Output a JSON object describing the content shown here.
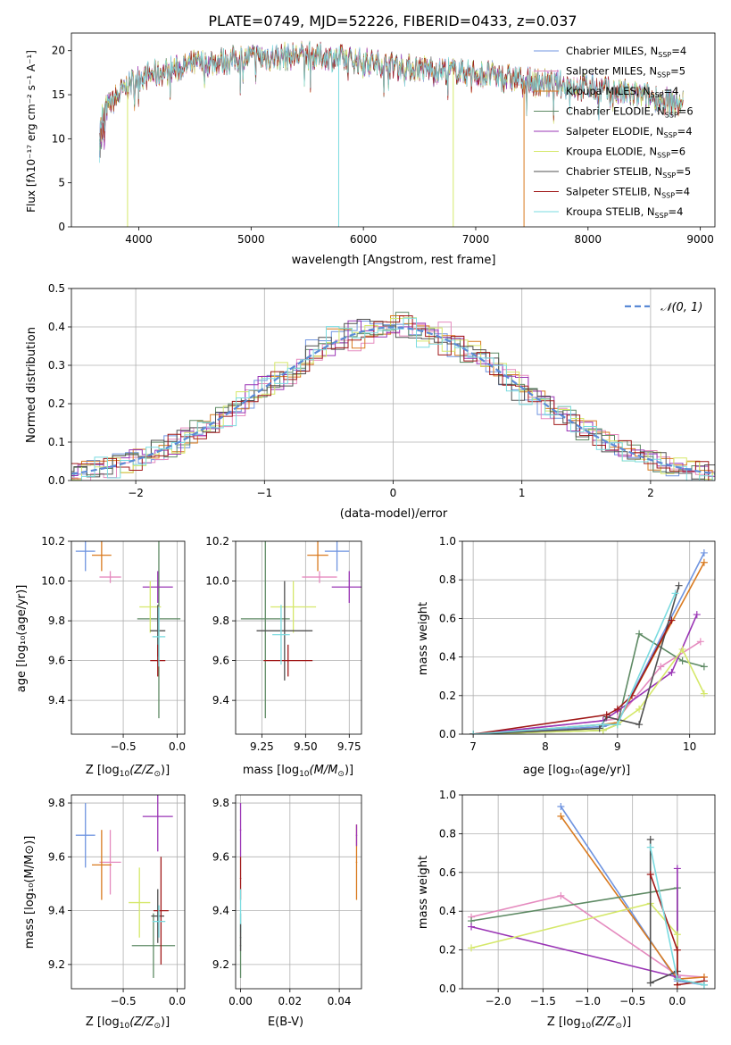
{
  "figure_title": "PLATE=0749, MJD=52226, FIBERID=0433, z=0.037",
  "colors": [
    "#6f94e0",
    "#e58bbf",
    "#d97a1f",
    "#5e8a64",
    "#9a34b5",
    "#d5e86a",
    "#505050",
    "#a01818",
    "#7adbe0"
  ],
  "chart_data": [
    {
      "id": "spectrum",
      "type": "line",
      "xlabel": "wavelength [Angstrom, rest frame]",
      "ylabel": "Flux [fλ10⁻¹⁷ erg cm⁻² s⁻¹ A⁻¹]",
      "xlim": [
        3400,
        9130
      ],
      "ylim": [
        0,
        22
      ],
      "xticks": [
        4000,
        5000,
        6000,
        7000,
        8000,
        9000
      ],
      "yticks": [
        0,
        5,
        10,
        15,
        20
      ],
      "grid": false,
      "legend_position": "top-right",
      "series": [
        {
          "name": "Chabrier MILES, N_SSP=4",
          "label_main": "Chabrier MILES, N",
          "label_sub": "SSP",
          "label_end": "=4"
        },
        {
          "name": "Salpeter MILES, N_SSP=5",
          "label_main": "Salpeter MILES, N",
          "label_sub": "SSP",
          "label_end": "=5"
        },
        {
          "name": "Kroupa MILES, N_SSP=4",
          "label_main": "Kroupa MILES, N",
          "label_sub": "SSP",
          "label_end": "=4"
        },
        {
          "name": "Chabrier ELODIE, N_SSP=6",
          "label_main": "Chabrier ELODIE, N",
          "label_sub": "SSP",
          "label_end": "=6"
        },
        {
          "name": "Salpeter ELODIE, N_SSP=4",
          "label_main": "Salpeter ELODIE, N",
          "label_sub": "SSP",
          "label_end": "=4"
        },
        {
          "name": "Kroupa ELODIE, N_SSP=6",
          "label_main": "Kroupa ELODIE, N",
          "label_sub": "SSP",
          "label_end": "=6"
        },
        {
          "name": "Chabrier STELIB, N_SSP=5",
          "label_main": "Chabrier STELIB, N",
          "label_sub": "SSP",
          "label_end": "=5"
        },
        {
          "name": "Salpeter STELIB, N_SSP=4",
          "label_main": "Salpeter STELIB, N",
          "label_sub": "SSP",
          "label_end": "=4"
        },
        {
          "name": "Kroupa STELIB, N_SSP=4",
          "label_main": "Kroupa STELIB, N",
          "label_sub": "SSP",
          "label_end": "=4"
        }
      ],
      "continuum": [
        [
          3650,
          12.5
        ],
        [
          3750,
          14
        ],
        [
          3900,
          16
        ],
        [
          4000,
          17
        ],
        [
          4200,
          17.5
        ],
        [
          4500,
          18.5
        ],
        [
          5000,
          19.2
        ],
        [
          5500,
          19.5
        ],
        [
          6000,
          18.8
        ],
        [
          6500,
          18
        ],
        [
          7000,
          17.5
        ],
        [
          7500,
          16.5
        ],
        [
          8000,
          15.8
        ],
        [
          8500,
          14.8
        ],
        [
          8800,
          14
        ]
      ]
    },
    {
      "id": "residuals",
      "type": "area",
      "xlabel": "(data-model)/error",
      "ylabel": "Normed distribution",
      "xlim": [
        -2.5,
        2.5
      ],
      "ylim": [
        0,
        0.5
      ],
      "xticks": [
        -2,
        -1,
        0,
        1,
        2
      ],
      "xtick_labels": [
        "−2",
        "−1",
        "0",
        "1",
        "2"
      ],
      "yticks": [
        0.0,
        0.1,
        0.2,
        0.3,
        0.4,
        0.5
      ],
      "ytick_labels": [
        "0.0",
        "0.1",
        "0.2",
        "0.3",
        "0.4",
        "0.5"
      ],
      "grid": true,
      "bin_width": 0.1,
      "legend": "𝒩(0, 1)",
      "legend_position": "top-right"
    },
    {
      "id": "age-z",
      "type": "scatter",
      "xlabel_main": "Z [log",
      "xlabel_sub": "10",
      "xlabel_end": "(Z/Z",
      "xlabel_sun": "⊙",
      "xlabel_close": ")]",
      "ylabel": "age  [log₁₀(age/yr)]",
      "xlim": [
        -0.98,
        0.07
      ],
      "ylim": [
        9.23,
        10.2
      ],
      "xticks": [
        -0.5,
        0.0
      ],
      "xtick_labels": [
        "−0.5",
        "0.0"
      ],
      "yticks": [
        9.4,
        9.6,
        9.8,
        10.0,
        10.2
      ],
      "ytick_labels": [
        "9.4",
        "9.6",
        "9.8",
        "10.0",
        "10.2"
      ],
      "grid": true,
      "points": [
        {
          "series": 0,
          "x": -0.85,
          "y": 10.15,
          "xerr": 0.09,
          "yerr": 0.1
        },
        {
          "series": 1,
          "x": -0.62,
          "y": 10.02,
          "xerr": 0.1,
          "yerr": 0.03
        },
        {
          "series": 2,
          "x": -0.7,
          "y": 10.13,
          "xerr": 0.09,
          "yerr": 0.08
        },
        {
          "series": 3,
          "x": -0.17,
          "y": 9.81,
          "xerr": 0.2,
          "yerr": 0.5
        },
        {
          "series": 4,
          "x": -0.18,
          "y": 9.97,
          "xerr": 0.14,
          "yerr": 0.08
        },
        {
          "series": 5,
          "x": -0.25,
          "y": 9.87,
          "xerr": 0.1,
          "yerr": 0.13
        },
        {
          "series": 6,
          "x": -0.18,
          "y": 9.75,
          "xerr": 0.07,
          "yerr": 0.13
        },
        {
          "series": 7,
          "x": -0.18,
          "y": 9.6,
          "xerr": 0.07,
          "yerr": 0.08
        },
        {
          "series": 8,
          "x": -0.17,
          "y": 9.72,
          "xerr": 0.06,
          "yerr": 0.15
        }
      ]
    },
    {
      "id": "age-mass",
      "type": "scatter",
      "xlabel_main": "mass [log",
      "xlabel_sub": "10",
      "xlabel_end": "(M/M",
      "xlabel_sun": "⊙",
      "xlabel_close": ")]",
      "xlim": [
        9.1,
        9.82
      ],
      "ylim": [
        9.23,
        10.2
      ],
      "xticks": [
        9.25,
        9.5,
        9.75
      ],
      "xtick_labels": [
        "9.25",
        "9.50",
        "9.75"
      ],
      "yticks": [
        9.4,
        9.6,
        9.8,
        10.0,
        10.2
      ],
      "ytick_labels": [
        "9.4",
        "9.6",
        "9.8",
        "10.0",
        "10.2"
      ],
      "grid": true,
      "points": [
        {
          "series": 0,
          "x": 9.68,
          "y": 10.15,
          "xerr": 0.07,
          "yerr": 0.1
        },
        {
          "series": 1,
          "x": 9.58,
          "y": 10.02,
          "xerr": 0.1,
          "yerr": 0.03
        },
        {
          "series": 2,
          "x": 9.57,
          "y": 10.13,
          "xerr": 0.06,
          "yerr": 0.08
        },
        {
          "series": 3,
          "x": 9.27,
          "y": 9.81,
          "xerr": 0.14,
          "yerr": 0.5
        },
        {
          "series": 4,
          "x": 9.75,
          "y": 9.97,
          "xerr": 0.1,
          "yerr": 0.08
        },
        {
          "series": 5,
          "x": 9.43,
          "y": 9.87,
          "xerr": 0.13,
          "yerr": 0.13
        },
        {
          "series": 6,
          "x": 9.38,
          "y": 9.75,
          "xerr": 0.16,
          "yerr": 0.25
        },
        {
          "series": 7,
          "x": 9.4,
          "y": 9.6,
          "xerr": 0.14,
          "yerr": 0.08
        },
        {
          "series": 8,
          "x": 9.36,
          "y": 9.73,
          "xerr": 0.05,
          "yerr": 0.15
        }
      ]
    },
    {
      "id": "weight-age",
      "type": "line",
      "xlabel": "age  [log₁₀(age/yr)]",
      "ylabel": "mass weight",
      "xlim": [
        6.85,
        10.35
      ],
      "ylim": [
        0,
        1
      ],
      "xticks": [
        7,
        8,
        9,
        10
      ],
      "xtick_labels": [
        "7",
        "8",
        "9",
        "10"
      ],
      "yticks": [
        0.0,
        0.2,
        0.4,
        0.6,
        0.8,
        1.0
      ],
      "ytick_labels": [
        "0.0",
        "0.2",
        "0.4",
        "0.6",
        "0.8",
        "1.0"
      ],
      "grid": true,
      "series": [
        {
          "series": 0,
          "x": [
            7.0,
            8.8,
            9.0,
            10.2
          ],
          "y": [
            0.0,
            0.04,
            0.06,
            0.94
          ]
        },
        {
          "series": 1,
          "x": [
            7.0,
            8.8,
            9.0,
            9.6,
            10.15
          ],
          "y": [
            0.0,
            0.07,
            0.08,
            0.35,
            0.48
          ]
        },
        {
          "series": 2,
          "x": [
            7.0,
            8.8,
            9.0,
            10.2
          ],
          "y": [
            0.0,
            0.05,
            0.06,
            0.89
          ]
        },
        {
          "series": 3,
          "x": [
            7.0,
            8.8,
            9.0,
            9.3,
            9.9,
            10.2
          ],
          "y": [
            0.0,
            0.02,
            0.05,
            0.52,
            0.38,
            0.35
          ]
        },
        {
          "series": 4,
          "x": [
            7.0,
            8.8,
            9.0,
            9.75,
            10.1
          ],
          "y": [
            0.0,
            0.07,
            0.12,
            0.32,
            0.62
          ]
        },
        {
          "series": 5,
          "x": [
            7.0,
            8.8,
            9.0,
            9.3,
            9.9,
            10.2
          ],
          "y": [
            0.0,
            0.02,
            0.05,
            0.13,
            0.44,
            0.21
          ]
        },
        {
          "series": 6,
          "x": [
            7.0,
            8.75,
            8.85,
            9.3,
            9.85
          ],
          "y": [
            0.0,
            0.03,
            0.09,
            0.05,
            0.77
          ]
        },
        {
          "series": 7,
          "x": [
            7.0,
            8.85,
            9.0,
            9.2,
            9.75
          ],
          "y": [
            0.0,
            0.1,
            0.13,
            0.2,
            0.59
          ]
        },
        {
          "series": 8,
          "x": [
            7.0,
            8.8,
            9.0,
            9.8
          ],
          "y": [
            0.0,
            0.05,
            0.05,
            0.73
          ]
        }
      ]
    },
    {
      "id": "mass-z",
      "type": "scatter",
      "xlabel_main": "Z [log",
      "xlabel_sub": "10",
      "xlabel_end": "(Z/Z",
      "xlabel_sun": "⊙",
      "xlabel_close": ")]",
      "ylabel": "mass [log₁₀(M/M⊙)]",
      "xlim": [
        -0.98,
        0.07
      ],
      "ylim": [
        9.11,
        9.83
      ],
      "xticks": [
        -0.5,
        0.0
      ],
      "xtick_labels": [
        "−0.5",
        "0.0"
      ],
      "yticks": [
        9.2,
        9.4,
        9.6,
        9.8
      ],
      "ytick_labels": [
        "9.2",
        "9.4",
        "9.6",
        "9.8"
      ],
      "grid": true,
      "points": [
        {
          "series": 0,
          "x": -0.85,
          "y": 9.68,
          "xerr": 0.09,
          "yerr": 0.12
        },
        {
          "series": 1,
          "x": -0.62,
          "y": 9.58,
          "xerr": 0.1,
          "yerr": 0.12
        },
        {
          "series": 2,
          "x": -0.7,
          "y": 9.57,
          "xerr": 0.09,
          "yerr": 0.13
        },
        {
          "series": 3,
          "x": -0.22,
          "y": 9.27,
          "xerr": 0.2,
          "yerr": 0.12
        },
        {
          "series": 4,
          "x": -0.18,
          "y": 9.75,
          "xerr": 0.14,
          "yerr": 0.13
        },
        {
          "series": 5,
          "x": -0.35,
          "y": 9.43,
          "xerr": 0.1,
          "yerr": 0.13
        },
        {
          "series": 6,
          "x": -0.18,
          "y": 9.38,
          "xerr": 0.06,
          "yerr": 0.1
        },
        {
          "series": 7,
          "x": -0.15,
          "y": 9.4,
          "xerr": 0.07,
          "yerr": 0.2
        },
        {
          "series": 8,
          "x": -0.17,
          "y": 9.36,
          "xerr": 0.06,
          "yerr": 0.06
        }
      ]
    },
    {
      "id": "mass-ebv",
      "type": "scatter",
      "xlabel": "E(B-V)",
      "xlim": [
        -0.002,
        0.049
      ],
      "ylim": [
        9.11,
        9.83
      ],
      "xticks": [
        0.0,
        0.02,
        0.04
      ],
      "xtick_labels": [
        "0.00",
        "0.02",
        "0.04"
      ],
      "yticks": [
        9.2,
        9.4,
        9.6,
        9.8
      ],
      "ytick_labels": [
        "9.2",
        "9.4",
        "9.6",
        "9.8"
      ],
      "grid": true,
      "points": [
        {
          "series": 3,
          "x": 0.0,
          "y": 9.27,
          "xerr": 0,
          "yerr": 0.12
        },
        {
          "series": 4,
          "x": 0.0,
          "y": 9.7,
          "xerr": 0,
          "yerr": 0.1
        },
        {
          "series": 7,
          "x": 0.0,
          "y": 9.52,
          "xerr": 0,
          "yerr": 0.08
        },
        {
          "series": 8,
          "x": 0.0,
          "y": 9.4,
          "xerr": 0,
          "yerr": 0.08
        },
        {
          "series": 6,
          "x": 0.0,
          "y": 9.3,
          "xerr": 0,
          "yerr": 0.05
        },
        {
          "series": 2,
          "x": 0.047,
          "y": 9.58,
          "xerr": 0,
          "yerr": 0.14
        },
        {
          "series": 4,
          "x": 0.047,
          "y": 9.68,
          "xerr": 0,
          "yerr": 0.04
        }
      ]
    },
    {
      "id": "weight-z",
      "type": "line",
      "xlabel_main": "Z [log",
      "xlabel_sub": "10",
      "xlabel_end": "(Z/Z",
      "xlabel_sun": "⊙",
      "xlabel_close": ")]",
      "ylabel": "mass weight",
      "xlim": [
        -2.4,
        0.42
      ],
      "ylim": [
        0,
        1
      ],
      "xticks": [
        -2.0,
        -1.5,
        -1.0,
        -0.5,
        0.0
      ],
      "xtick_labels": [
        "−2.0",
        "−1.5",
        "−1.0",
        "−0.5",
        "0.0"
      ],
      "yticks": [
        0.0,
        0.2,
        0.4,
        0.6,
        0.8,
        1.0
      ],
      "ytick_labels": [
        "0.0",
        "0.2",
        "0.4",
        "0.6",
        "0.8",
        "1.0"
      ],
      "grid": true,
      "series": [
        {
          "series": 0,
          "x": [
            -1.3,
            0.0,
            0.3
          ],
          "y": [
            0.94,
            0.04,
            0.02
          ]
        },
        {
          "series": 1,
          "x": [
            -2.3,
            -1.3,
            0.0,
            0.3
          ],
          "y": [
            0.37,
            0.48,
            0.07,
            0.06
          ]
        },
        {
          "series": 2,
          "x": [
            -1.3,
            0.0,
            0.3
          ],
          "y": [
            0.89,
            0.05,
            0.06
          ]
        },
        {
          "series": 3,
          "x": [
            -2.3,
            0.0,
            0.0,
            0.3
          ],
          "y": [
            0.35,
            0.52,
            0.05,
            0.02
          ]
        },
        {
          "series": 4,
          "x": [
            -2.3,
            0.0,
            0.0
          ],
          "y": [
            0.32,
            0.06,
            0.62
          ]
        },
        {
          "series": 5,
          "x": [
            -2.3,
            -0.3,
            0.0,
            0.0
          ],
          "y": [
            0.21,
            0.44,
            0.28,
            0.02
          ]
        },
        {
          "series": 6,
          "x": [
            -0.3,
            -0.3,
            0.0,
            0.0
          ],
          "y": [
            0.77,
            0.03,
            0.09,
            0.05
          ]
        },
        {
          "series": 7,
          "x": [
            -0.3,
            0.0,
            0.0,
            0.3
          ],
          "y": [
            0.59,
            0.2,
            0.02,
            0.04
          ]
        },
        {
          "series": 8,
          "x": [
            -0.3,
            0.0,
            0.3
          ],
          "y": [
            0.73,
            0.05,
            0.02
          ]
        }
      ]
    }
  ]
}
